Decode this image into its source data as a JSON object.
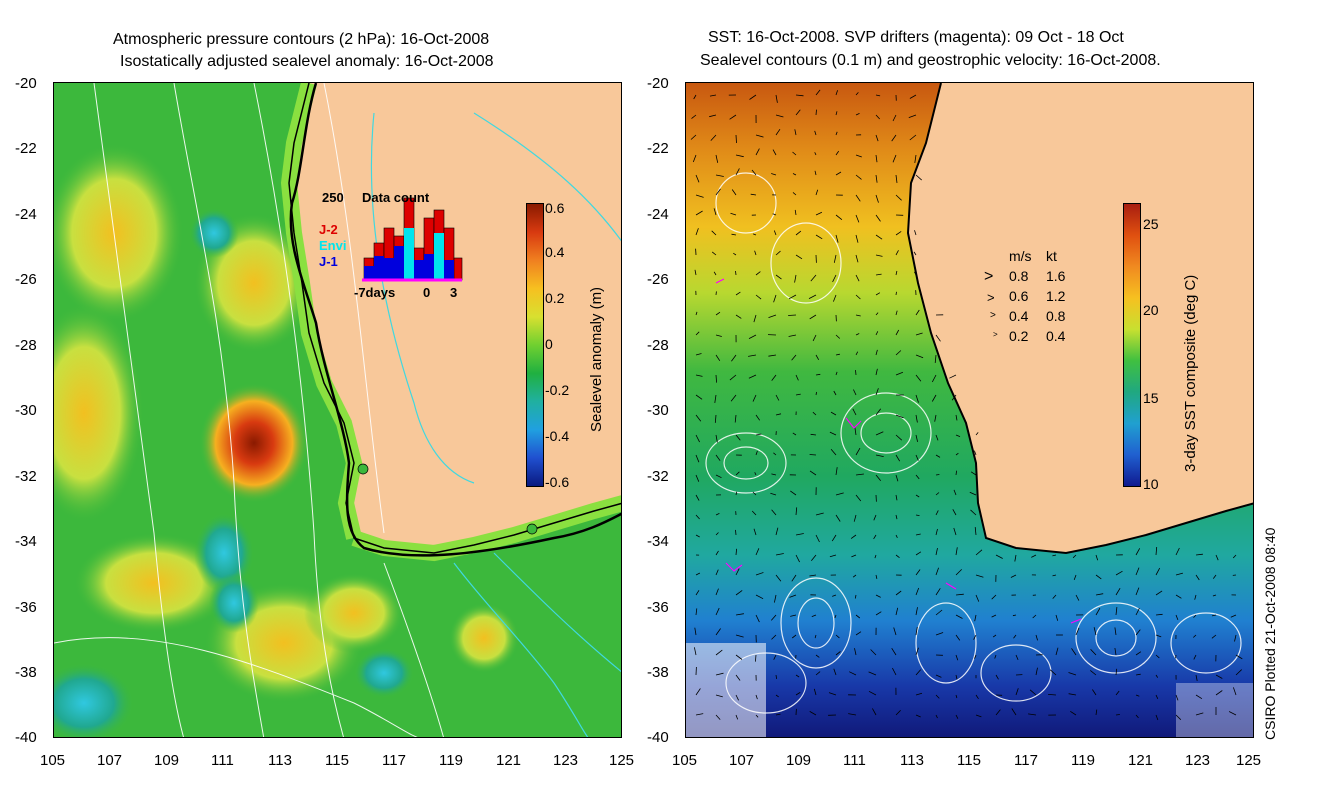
{
  "left_panel": {
    "title_line1": "Atmospheric pressure contours (2 hPa): 16-Oct-2008",
    "title_line2": "Isostatically adjusted sealevel anomaly: 16-Oct-2008",
    "colorbar_label": "Sealevel anomaly (m)",
    "colorbar_ticks": [
      "0.6",
      "0.4",
      "0.2",
      "0",
      "-0.2",
      "-0.4",
      "-0.6"
    ],
    "inset": {
      "title": "Data count",
      "ymax": "250",
      "series": [
        "J-2",
        "Envi",
        "J-1"
      ],
      "series_colors": [
        "#dd0000",
        "#00e5ee",
        "#0000dd"
      ],
      "x_left": "-7days",
      "x_zero": "0",
      "x_right": "3"
    }
  },
  "right_panel": {
    "title_line1": "SST: 16-Oct-2008. SVP drifters (magenta): 09 Oct - 18 Oct",
    "title_line2": "Sealevel contours (0.1 m) and geostrophic velocity: 16-Oct-2008.",
    "colorbar_label": "3-day SST composite (deg C)",
    "colorbar_ticks": [
      "25",
      "20",
      "15",
      "10"
    ],
    "velocity_legend": {
      "header_ms": "m/s",
      "header_kt": "kt",
      "rows": [
        {
          "ms": "0.8",
          "kt": "1.6"
        },
        {
          "ms": "0.6",
          "kt": "1.2"
        },
        {
          "ms": "0.4",
          "kt": "0.8"
        },
        {
          "ms": "0.2",
          "kt": "0.4"
        }
      ]
    }
  },
  "axes": {
    "lat_ticks": [
      "-20",
      "-22",
      "-24",
      "-26",
      "-28",
      "-30",
      "-32",
      "-34",
      "-36",
      "-38",
      "-40"
    ],
    "lon_ticks": [
      "105",
      "107",
      "109",
      "111",
      "113",
      "115",
      "117",
      "119",
      "121",
      "123",
      "125"
    ],
    "lat_range": [
      -40,
      -20
    ],
    "lon_range": [
      105,
      125
    ]
  },
  "credit": "CSIRO Plotted 21-Oct-2008 08:40",
  "colors": {
    "land": "#f8c89a",
    "ocean_green": "#3cb83c",
    "anomaly_high": "#b01e00",
    "sst_warm": "#d06010",
    "sst_cold": "#10209a"
  }
}
